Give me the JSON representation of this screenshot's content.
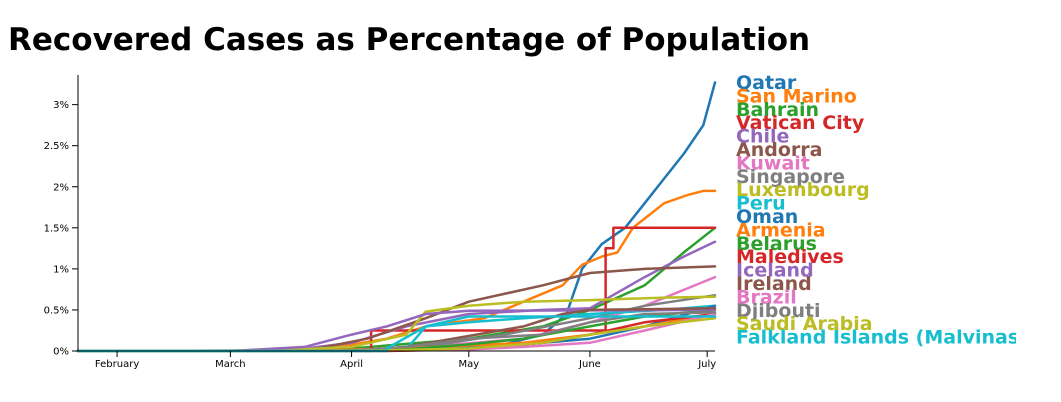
{
  "chart_data": {
    "type": "line",
    "title": "Recovered Cases as Percentage of Population",
    "xlabel": "",
    "ylabel": "",
    "x_ticks": [
      "February",
      "March",
      "April",
      "May",
      "June",
      "July"
    ],
    "x_tick_dates": [
      "2020-02-01",
      "2020-03-01",
      "2020-04-01",
      "2020-05-01",
      "2020-06-01",
      "2020-07-01"
    ],
    "xlim": [
      "2020-01-22",
      "2020-07-03"
    ],
    "y_ticks": [
      "0%",
      "0.5%",
      "1%",
      "1.5%",
      "2%",
      "2.5%",
      "3%"
    ],
    "y_tick_values": [
      0,
      0.5,
      1,
      1.5,
      2,
      2.5,
      3
    ],
    "ylim": [
      0,
      3.3
    ],
    "grid": false,
    "legend_position": "right",
    "series": [
      {
        "name": "Qatar",
        "color": "#1f77b4",
        "points": [
          [
            "2020-01-22",
            0
          ],
          [
            "2020-02-28",
            0
          ],
          [
            "2020-04-01",
            0.01
          ],
          [
            "2020-04-20",
            0.03
          ],
          [
            "2020-05-10",
            0.08
          ],
          [
            "2020-05-20",
            0.2
          ],
          [
            "2020-05-26",
            0.45
          ],
          [
            "2020-05-30",
            1.0
          ],
          [
            "2020-06-04",
            1.3
          ],
          [
            "2020-06-10",
            1.5
          ],
          [
            "2020-06-15",
            1.8
          ],
          [
            "2020-06-20",
            2.1
          ],
          [
            "2020-06-25",
            2.4
          ],
          [
            "2020-06-30",
            2.75
          ],
          [
            "2020-07-03",
            3.27
          ]
        ]
      },
      {
        "name": "San Marino",
        "color": "#ff7f0e",
        "points": [
          [
            "2020-01-22",
            0
          ],
          [
            "2020-03-10",
            0
          ],
          [
            "2020-03-25",
            0.02
          ],
          [
            "2020-04-10",
            0.15
          ],
          [
            "2020-04-20",
            0.3
          ],
          [
            "2020-05-05",
            0.4
          ],
          [
            "2020-05-15",
            0.6
          ],
          [
            "2020-05-25",
            0.8
          ],
          [
            "2020-05-30",
            1.05
          ],
          [
            "2020-06-04",
            1.15
          ],
          [
            "2020-06-08",
            1.2
          ],
          [
            "2020-06-12",
            1.5
          ],
          [
            "2020-06-20",
            1.8
          ],
          [
            "2020-06-26",
            1.9
          ],
          [
            "2020-06-30",
            1.95
          ],
          [
            "2020-07-03",
            1.95
          ]
        ]
      },
      {
        "name": "Bahrain",
        "color": "#2ca02c",
        "points": [
          [
            "2020-01-22",
            0
          ],
          [
            "2020-03-01",
            0
          ],
          [
            "2020-04-01",
            0.03
          ],
          [
            "2020-05-01",
            0.15
          ],
          [
            "2020-05-20",
            0.3
          ],
          [
            "2020-06-01",
            0.5
          ],
          [
            "2020-06-15",
            0.8
          ],
          [
            "2020-06-25",
            1.2
          ],
          [
            "2020-07-03",
            1.5
          ]
        ]
      },
      {
        "name": "Vatican City",
        "color": "#d62728",
        "points": [
          [
            "2020-01-22",
            0
          ],
          [
            "2020-04-06",
            0
          ],
          [
            "2020-04-06",
            0.25
          ],
          [
            "2020-06-05",
            0.25
          ],
          [
            "2020-06-05",
            1.25
          ],
          [
            "2020-06-07",
            1.25
          ],
          [
            "2020-06-07",
            1.5
          ],
          [
            "2020-07-03",
            1.5
          ]
        ]
      },
      {
        "name": "Chile",
        "color": "#9467bd",
        "points": [
          [
            "2020-01-22",
            0
          ],
          [
            "2020-03-15",
            0
          ],
          [
            "2020-04-01",
            0.1
          ],
          [
            "2020-04-15",
            0.3
          ],
          [
            "2020-05-01",
            0.45
          ],
          [
            "2020-05-20",
            0.5
          ],
          [
            "2020-06-01",
            0.52
          ],
          [
            "2020-06-15",
            0.9
          ],
          [
            "2020-06-25",
            1.15
          ],
          [
            "2020-07-03",
            1.33
          ]
        ]
      },
      {
        "name": "Andorra",
        "color": "#8c564b",
        "points": [
          [
            "2020-01-22",
            0
          ],
          [
            "2020-03-20",
            0
          ],
          [
            "2020-04-05",
            0.15
          ],
          [
            "2020-04-20",
            0.4
          ],
          [
            "2020-05-01",
            0.6
          ],
          [
            "2020-05-20",
            0.8
          ],
          [
            "2020-06-01",
            0.95
          ],
          [
            "2020-06-15",
            1.0
          ],
          [
            "2020-07-03",
            1.03
          ]
        ]
      },
      {
        "name": "Kuwait",
        "color": "#e377c2",
        "points": [
          [
            "2020-01-22",
            0
          ],
          [
            "2020-03-15",
            0
          ],
          [
            "2020-04-15",
            0.03
          ],
          [
            "2020-05-15",
            0.15
          ],
          [
            "2020-06-01",
            0.35
          ],
          [
            "2020-06-15",
            0.55
          ],
          [
            "2020-07-03",
            0.9
          ]
        ]
      },
      {
        "name": "Singapore",
        "color": "#7f7f7f",
        "points": [
          [
            "2020-01-22",
            0
          ],
          [
            "2020-02-15",
            0.001
          ],
          [
            "2020-04-15",
            0.02
          ],
          [
            "2020-05-10",
            0.2
          ],
          [
            "2020-06-01",
            0.4
          ],
          [
            "2020-06-15",
            0.55
          ],
          [
            "2020-07-03",
            0.68
          ]
        ]
      },
      {
        "name": "Luxembourg",
        "color": "#bcbd22",
        "points": [
          [
            "2020-01-22",
            0
          ],
          [
            "2020-03-10",
            0
          ],
          [
            "2020-04-01",
            0.05
          ],
          [
            "2020-04-15",
            0.2
          ],
          [
            "2020-04-20",
            0.48
          ],
          [
            "2020-05-01",
            0.55
          ],
          [
            "2020-05-15",
            0.6
          ],
          [
            "2020-06-01",
            0.62
          ],
          [
            "2020-06-20",
            0.65
          ],
          [
            "2020-07-03",
            0.66
          ]
        ]
      },
      {
        "name": "Peru",
        "color": "#17becf",
        "points": [
          [
            "2020-01-22",
            0
          ],
          [
            "2020-03-20",
            0
          ],
          [
            "2020-04-15",
            0.02
          ],
          [
            "2020-04-20",
            0.3
          ],
          [
            "2020-05-01",
            0.35
          ],
          [
            "2020-05-15",
            0.4
          ],
          [
            "2020-06-01",
            0.45
          ],
          [
            "2020-06-20",
            0.5
          ],
          [
            "2020-07-03",
            0.55
          ]
        ]
      },
      {
        "name": "Oman",
        "color": "#1f77b4",
        "points": [
          [
            "2020-01-22",
            0
          ],
          [
            "2020-03-20",
            0
          ],
          [
            "2020-04-20",
            0.02
          ],
          [
            "2020-05-15",
            0.08
          ],
          [
            "2020-06-01",
            0.15
          ],
          [
            "2020-06-15",
            0.3
          ],
          [
            "2020-07-03",
            0.55
          ]
        ]
      },
      {
        "name": "Armenia",
        "color": "#ff7f0e",
        "points": [
          [
            "2020-01-22",
            0
          ],
          [
            "2020-03-20",
            0
          ],
          [
            "2020-04-15",
            0.03
          ],
          [
            "2020-05-15",
            0.1
          ],
          [
            "2020-06-01",
            0.2
          ],
          [
            "2020-06-15",
            0.3
          ],
          [
            "2020-07-03",
            0.45
          ]
        ]
      },
      {
        "name": "Belarus",
        "color": "#2ca02c",
        "points": [
          [
            "2020-01-22",
            0
          ],
          [
            "2020-03-25",
            0
          ],
          [
            "2020-04-15",
            0.02
          ],
          [
            "2020-05-01",
            0.08
          ],
          [
            "2020-05-15",
            0.15
          ],
          [
            "2020-06-01",
            0.3
          ],
          [
            "2020-06-15",
            0.42
          ],
          [
            "2020-07-03",
            0.5
          ]
        ]
      },
      {
        "name": "Maledives",
        "color": "#d62728",
        "points": [
          [
            "2020-01-22",
            0
          ],
          [
            "2020-04-10",
            0
          ],
          [
            "2020-05-01",
            0.02
          ],
          [
            "2020-05-20",
            0.1
          ],
          [
            "2020-06-01",
            0.2
          ],
          [
            "2020-06-15",
            0.35
          ],
          [
            "2020-07-03",
            0.45
          ]
        ]
      },
      {
        "name": "Iceland",
        "color": "#9467bd",
        "points": [
          [
            "2020-01-22",
            0
          ],
          [
            "2020-03-01",
            0
          ],
          [
            "2020-03-20",
            0.05
          ],
          [
            "2020-04-01",
            0.2
          ],
          [
            "2020-04-10",
            0.3
          ],
          [
            "2020-04-20",
            0.45
          ],
          [
            "2020-05-01",
            0.49
          ],
          [
            "2020-07-03",
            0.5
          ]
        ]
      },
      {
        "name": "Ireland",
        "color": "#8c564b",
        "points": [
          [
            "2020-01-22",
            0
          ],
          [
            "2020-04-01",
            0
          ],
          [
            "2020-04-15",
            0.05
          ],
          [
            "2020-05-15",
            0.3
          ],
          [
            "2020-05-25",
            0.45
          ],
          [
            "2020-06-01",
            0.5
          ],
          [
            "2020-07-03",
            0.52
          ]
        ]
      },
      {
        "name": "Brazil",
        "color": "#e377c2",
        "points": [
          [
            "2020-01-22",
            0
          ],
          [
            "2020-04-01",
            0
          ],
          [
            "2020-05-01",
            0.02
          ],
          [
            "2020-05-15",
            0.05
          ],
          [
            "2020-06-01",
            0.1
          ],
          [
            "2020-06-15",
            0.25
          ],
          [
            "2020-07-03",
            0.45
          ]
        ]
      },
      {
        "name": "Djibouti",
        "color": "#7f7f7f",
        "points": [
          [
            "2020-01-22",
            0
          ],
          [
            "2020-04-01",
            0
          ],
          [
            "2020-04-15",
            0.05
          ],
          [
            "2020-05-01",
            0.15
          ],
          [
            "2020-05-20",
            0.2
          ],
          [
            "2020-06-01",
            0.35
          ],
          [
            "2020-06-15",
            0.45
          ],
          [
            "2020-07-03",
            0.47
          ]
        ]
      },
      {
        "name": "Saudi Arabia",
        "color": "#bcbd22",
        "points": [
          [
            "2020-01-22",
            0
          ],
          [
            "2020-04-01",
            0
          ],
          [
            "2020-05-01",
            0.03
          ],
          [
            "2020-05-20",
            0.1
          ],
          [
            "2020-06-01",
            0.2
          ],
          [
            "2020-06-15",
            0.3
          ],
          [
            "2020-07-03",
            0.4
          ]
        ]
      },
      {
        "name": "Falkland Islands (Malvinas)",
        "color": "#17becf",
        "points": [
          [
            "2020-01-22",
            0
          ],
          [
            "2020-04-10",
            0
          ],
          [
            "2020-04-10",
            0.03
          ],
          [
            "2020-04-20",
            0.3
          ],
          [
            "2020-05-01",
            0.42
          ],
          [
            "2020-07-03",
            0.42
          ]
        ]
      }
    ]
  }
}
